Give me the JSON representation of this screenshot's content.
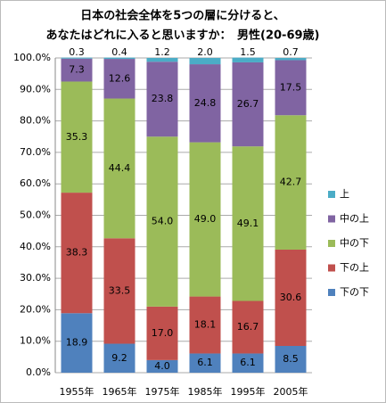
{
  "chart_data": {
    "type": "stacked_bar",
    "title": [
      "日本の社会全体を5つの層に分けると、",
      "あなたはどれに入ると思いますか：　男性(20-69歳)"
    ],
    "categories": [
      "1955年",
      "1965年",
      "1975年",
      "1985年",
      "1995年",
      "2005年"
    ],
    "series": [
      {
        "name": "下の下",
        "color": "#4f81bd",
        "values": [
          18.9,
          9.2,
          4.0,
          6.1,
          6.1,
          8.5
        ],
        "value_labels": [
          "18.9",
          "9.2",
          "4.0",
          "6.1",
          "6.1",
          "8.5"
        ]
      },
      {
        "name": "下の上",
        "color": "#c0504d",
        "values": [
          38.3,
          33.5,
          17.0,
          18.1,
          16.7,
          30.6
        ],
        "value_labels": [
          "38.3",
          "33.5",
          "17.0",
          "18.1",
          "16.7",
          "30.6"
        ]
      },
      {
        "name": "中の下",
        "color": "#9bbb59",
        "values": [
          35.3,
          44.4,
          54.0,
          49.0,
          49.1,
          42.7
        ],
        "value_labels": [
          "35.3",
          "44.4",
          "54.0",
          "49.0",
          "49.1",
          "42.7"
        ]
      },
      {
        "name": "中の上",
        "color": "#8064a2",
        "values": [
          7.3,
          12.6,
          23.8,
          24.8,
          26.7,
          17.5
        ],
        "value_labels": [
          "7.3",
          "12.6",
          "23.8",
          "24.8",
          "26.7",
          "17.5"
        ]
      },
      {
        "name": "上",
        "color": "#4bacc6",
        "values": [
          0.3,
          0.4,
          1.2,
          2.0,
          1.5,
          0.7
        ],
        "value_labels": [
          "0.3",
          "0.4",
          "1.2",
          "2.0",
          "1.5",
          "0.7"
        ]
      }
    ],
    "ylim": [
      0,
      100
    ],
    "yticks": [
      {
        "value": 0,
        "label": "0.0%"
      },
      {
        "value": 10,
        "label": "10.0%"
      },
      {
        "value": 20,
        "label": "20.0%"
      },
      {
        "value": 30,
        "label": "30.0%"
      },
      {
        "value": 40,
        "label": "40.0%"
      },
      {
        "value": 50,
        "label": "50.0%"
      },
      {
        "value": 60,
        "label": "60.0%"
      },
      {
        "value": 70,
        "label": "70.0%"
      },
      {
        "value": 80,
        "label": "80.0%"
      },
      {
        "value": 90,
        "label": "90.0%"
      },
      {
        "value": 100,
        "label": "100.0%"
      }
    ],
    "grid": true,
    "legend": "right"
  }
}
